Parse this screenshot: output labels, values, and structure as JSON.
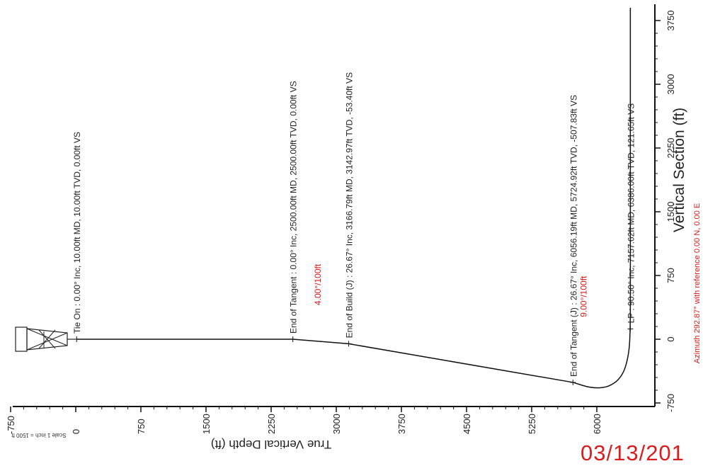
{
  "chart_data": {
    "type": "line",
    "orientation": "rotated-90-ccw",
    "xlabel": "Vertical Section (ft)",
    "ylabel": "True Vertical Depth (ft)",
    "x_ticks": [
      "-750",
      "0",
      "750",
      "1500",
      "2250",
      "3000",
      "3750"
    ],
    "y_ticks": [
      "-750",
      "0",
      "750",
      "1500",
      "2250",
      "3000",
      "3750",
      "4500",
      "5250",
      "6000"
    ],
    "xlim": [
      -750,
      3900
    ],
    "ylim": [
      -750,
      6600
    ],
    "scale_note": "Scale 1 inch = 1500 ft",
    "azimuth_note": "Azimuth 292.87° with reference 0.00 N, 0.00 E",
    "series": [
      {
        "x": [
          0,
          0,
          -53.4,
          -507.83,
          -580,
          -560,
          -430,
          -180,
          121.65,
          700,
          1500,
          2300,
          3000,
          3600,
          3900
        ],
        "y": [
          10.0,
          2500.0,
          3142.97,
          5724.92,
          5950,
          6150,
          6300,
          6370,
          6386.0,
          6386,
          6386,
          6386,
          6386,
          6386,
          6386
        ]
      }
    ],
    "build_rates": [
      {
        "text": "4.00°/100ft",
        "x": 400,
        "y": 2820
      },
      {
        "text": "9.00°/100ft",
        "x": 260,
        "y": 5880
      }
    ],
    "annotations": [
      {
        "text": "Tie On : 0.00° Inc, 10.00ft MD, 10.00ft TVD, 0.00ft VS",
        "x": 0,
        "y": 10
      },
      {
        "text": "End of Tangent : 0.00° Inc, 2500.00ft MD, 2500.00ft TVD, 0.00ft VS",
        "x": 0,
        "y": 2500
      },
      {
        "text": "End of Build (J) : 26.67° Inc, 3166.79ft MD, 3142.97ft TVD, -53.40ft VS",
        "x": -53.4,
        "y": 3142.97
      },
      {
        "text": "End of Tangent (J) : 26.67° Inc, 6056.19ft MD, 5724.92ft TVD, -507.83ft VS",
        "x": -507.83,
        "y": 5724.92
      },
      {
        "text": "LP : 90.50° Inc, 7157.62ft MD, 6386.00ft TVD, 121.65ft VS",
        "x": 121.65,
        "y": 6386
      }
    ],
    "colors": {
      "line": "#111111",
      "annotation": "#222222",
      "rate": "#d81e1e",
      "stamp": "#d81e1e"
    }
  },
  "stamp": {
    "date": "03/13/201"
  }
}
